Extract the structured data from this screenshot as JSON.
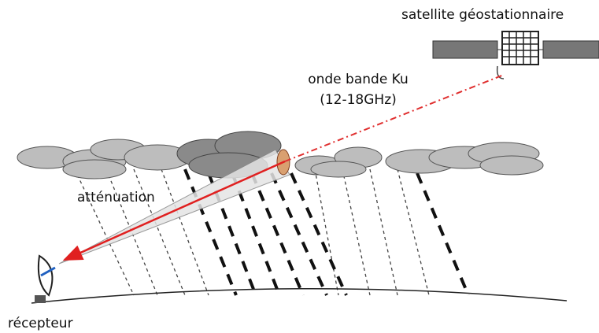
{
  "labels": {
    "satellite": "satellite géostationnaire",
    "wave": "onde bande Ku",
    "band": "(12-18GHz)",
    "attenuation": "atténuation",
    "receiver": "récepteur"
  }
}
